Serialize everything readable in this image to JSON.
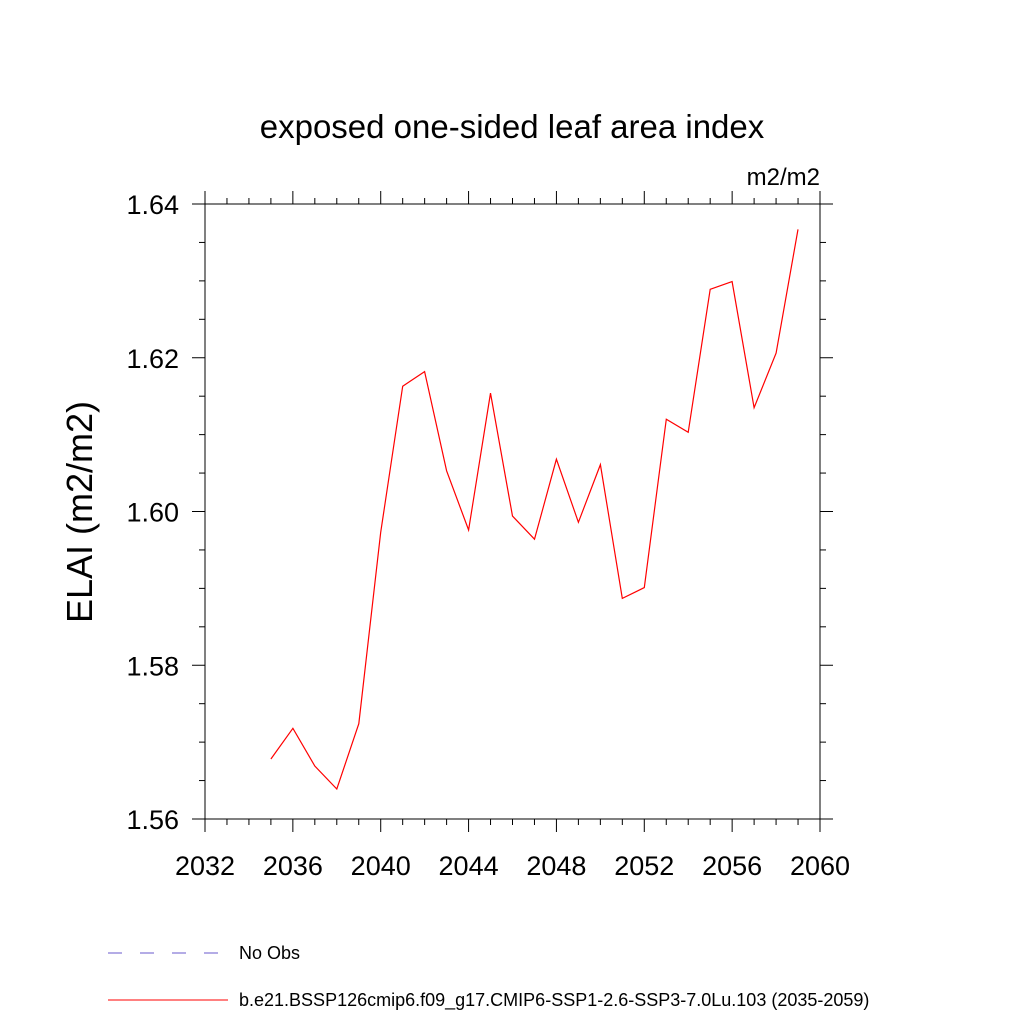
{
  "chart_data": {
    "type": "line",
    "title": "exposed one-sided leaf area index",
    "units_label": "m2/m2",
    "xlabel": "",
    "ylabel": "ELAI  (m2/m2)",
    "xlim": [
      2032,
      2060
    ],
    "ylim": [
      1.56,
      1.64
    ],
    "x_ticks": [
      2032,
      2036,
      2040,
      2044,
      2048,
      2052,
      2056,
      2060
    ],
    "y_ticks": [
      1.56,
      1.58,
      1.6,
      1.62,
      1.64
    ],
    "x_tick_labels": [
      "2032",
      "2036",
      "2040",
      "2044",
      "2048",
      "2052",
      "2056",
      "2060"
    ],
    "y_tick_labels": [
      "1.56",
      "1.58",
      "1.60",
      "1.62",
      "1.64"
    ],
    "grid": false,
    "legend_position": "bottom-left",
    "series": [
      {
        "name": "b.e21.BSSP126cmip6.f09_g17.CMIP6-SSP1-2.6-SSP3-7.0Lu.103 (2035-2059)",
        "color": "#ff0000",
        "style": "solid",
        "x": [
          2035,
          2036,
          2037,
          2038,
          2039,
          2040,
          2041,
          2042,
          2043,
          2044,
          2045,
          2046,
          2047,
          2048,
          2049,
          2050,
          2051,
          2052,
          2053,
          2054,
          2055,
          2056,
          2057,
          2058,
          2059
        ],
        "values": [
          1.5678,
          1.5718,
          1.5669,
          1.5639,
          1.5724,
          1.5973,
          1.6163,
          1.6182,
          1.6053,
          1.5976,
          1.6154,
          1.5994,
          1.5964,
          1.6068,
          1.5986,
          1.6061,
          1.5887,
          1.5901,
          1.612,
          1.6103,
          1.6289,
          1.6299,
          1.6135,
          1.6206,
          1.6367
        ]
      }
    ],
    "legend": [
      {
        "label": "No Obs",
        "color": "#6a5acd",
        "style": "dashed"
      },
      {
        "label": "b.e21.BSSP126cmip6.f09_g17.CMIP6-SSP1-2.6-SSP3-7.0Lu.103 (2035-2059)",
        "color": "#ff0000",
        "style": "solid"
      }
    ]
  }
}
